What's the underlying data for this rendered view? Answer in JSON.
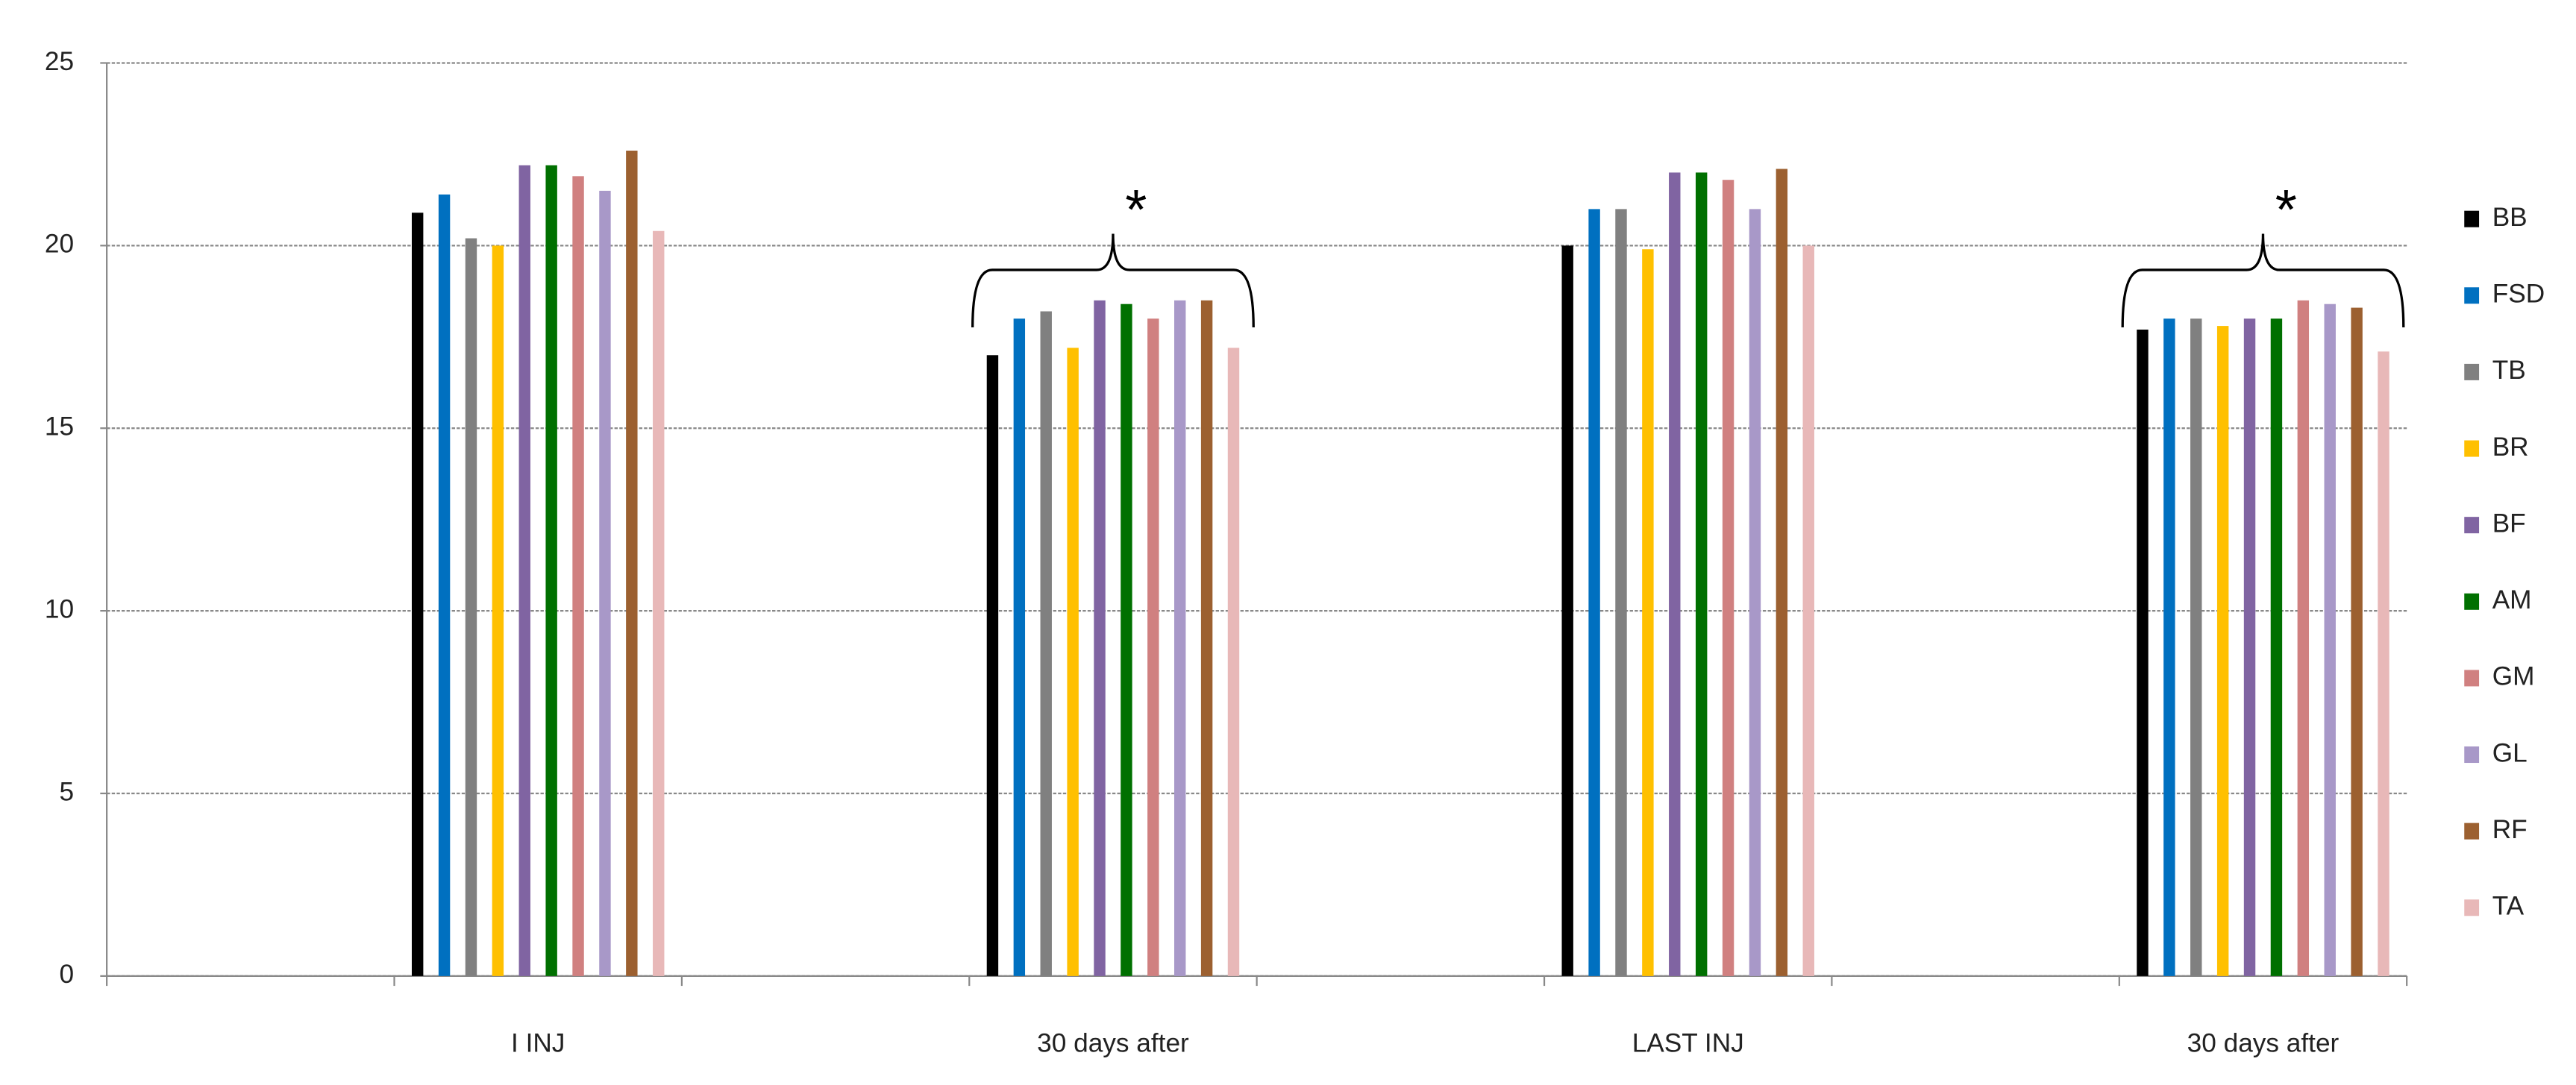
{
  "chart_data": {
    "type": "bar",
    "categories": [
      null,
      "I INJ",
      null,
      "30 days after",
      null,
      "LAST INJ",
      null,
      "30 days after"
    ],
    "series": [
      {
        "name": "BB",
        "color": "#000000",
        "values": [
          null,
          20.9,
          null,
          17.0,
          null,
          20.0,
          null,
          17.7
        ]
      },
      {
        "name": "FSD",
        "color": "#0070c0",
        "values": [
          null,
          21.4,
          null,
          18.0,
          null,
          21.0,
          null,
          18.0
        ]
      },
      {
        "name": "TB",
        "color": "#808080",
        "values": [
          null,
          20.2,
          null,
          18.2,
          null,
          21.0,
          null,
          18.0
        ]
      },
      {
        "name": "BR",
        "color": "#ffc000",
        "values": [
          null,
          20.0,
          null,
          17.2,
          null,
          19.9,
          null,
          17.8
        ]
      },
      {
        "name": "BF",
        "color": "#8064a2",
        "values": [
          null,
          22.2,
          null,
          18.5,
          null,
          22.0,
          null,
          18.0
        ]
      },
      {
        "name": "AM",
        "color": "#007000",
        "values": [
          null,
          22.2,
          null,
          18.4,
          null,
          22.0,
          null,
          18.0
        ]
      },
      {
        "name": "GM",
        "color": "#d08080",
        "values": [
          null,
          21.9,
          null,
          18.0,
          null,
          21.8,
          null,
          18.5
        ]
      },
      {
        "name": "GL",
        "color": "#a898c8",
        "values": [
          null,
          21.5,
          null,
          18.5,
          null,
          21.0,
          null,
          18.4
        ]
      },
      {
        "name": "RF",
        "color": "#9c6030",
        "values": [
          null,
          22.6,
          null,
          18.5,
          null,
          22.1,
          null,
          18.3
        ]
      },
      {
        "name": "TA",
        "color": "#e8b8b8",
        "values": [
          null,
          20.4,
          null,
          17.2,
          null,
          20.0,
          null,
          17.1
        ]
      }
    ],
    "annotations": [
      {
        "text": "*",
        "category": 3
      },
      {
        "text": "*",
        "category": 7
      }
    ],
    "ylim": [
      0,
      25
    ],
    "yticks": [
      0,
      5,
      10,
      15,
      20,
      25
    ],
    "grid": true,
    "legend": "right"
  }
}
